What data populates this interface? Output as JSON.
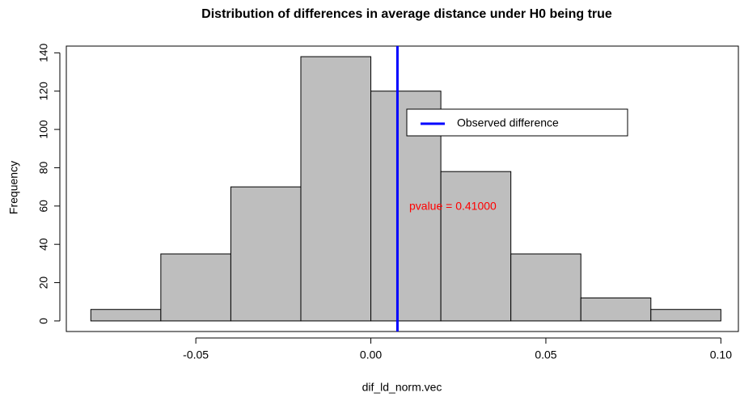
{
  "chart_data": {
    "type": "histogram",
    "title": "Distribution of differences in average distance under H0 being true",
    "x_label": "dif_ld_norm.vec",
    "y_label": "Frequency",
    "bins": [
      -0.08,
      -0.06,
      -0.04,
      -0.02,
      0.0,
      0.02,
      0.04,
      0.06,
      0.08,
      0.1
    ],
    "values": [
      6,
      35,
      70,
      138,
      120,
      78,
      35,
      12,
      6
    ],
    "color": "#bebebe",
    "xlim": [
      -0.087,
      0.105
    ],
    "ylim": [
      -5.52,
      143.52
    ],
    "xticks": [
      {
        "value": -0.05,
        "label": "-0.05"
      },
      {
        "value": 0.0,
        "label": "0.00"
      },
      {
        "value": 0.05,
        "label": "0.05"
      },
      {
        "value": 0.1,
        "label": "0.10"
      }
    ],
    "yticks": [
      0,
      20,
      40,
      60,
      80,
      100,
      120,
      140
    ],
    "observed": {
      "name": "Observed difference",
      "value": 0.0076,
      "color": "#0000ff"
    },
    "annotation": {
      "text": "pvalue =  0.41000",
      "color": "#ff0000"
    }
  }
}
